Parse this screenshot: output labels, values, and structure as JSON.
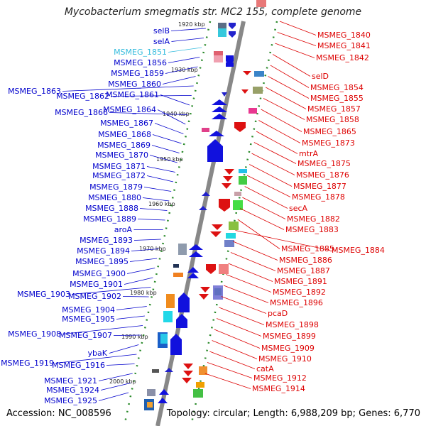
{
  "title": "Mycobacterium smegmatis str. MC2 155, complete genome",
  "footer": {
    "accession": "Accession: NC_008596",
    "topology": "Topology: circular; Length: 6,988,209 bp; Genes: 6,770"
  },
  "colors": {
    "left_label": "#0000cc",
    "left_label_highlight": "#33bbdd",
    "right_label": "#dd0000",
    "axis": "#888888",
    "tick": "#2a8a2a"
  },
  "kbp_marks": [
    "1920 kbp",
    "1930 kbp",
    "1940 kbp",
    "1950 kbp",
    "1960 kbp",
    "1970 kbp",
    "1980 kbp",
    "1990 kbp",
    "2000 kbp"
  ],
  "left_labels": [
    "selB",
    "selA",
    "MSMEG_1851",
    "MSMEG_1856",
    "MSMEG_1859",
    "MSMEG_1860",
    "MSMEG_1863",
    "MSMEG_1862",
    "MSMEG_1861",
    "MSMEG_1866",
    "MSMEG_1864",
    "MSMEG_1867",
    "MSMEG_1868",
    "MSMEG_1869",
    "MSMEG_1870",
    "MSMEG_1871",
    "MSMEG_1872",
    "MSMEG_1879",
    "MSMEG_1880",
    "MSMEG_1888",
    "MSMEG_1889",
    "aroA",
    "MSMEG_1893",
    "MSMEG_1894",
    "MSMEG_1895",
    "MSMEG_1900",
    "MSMEG_1901",
    "MSMEG_1903",
    "MSMEG_1902",
    "MSMEG_1904",
    "MSMEG_1905",
    "MSMEG_1908",
    "MSMEG_1907",
    "ybaK",
    "MSMEG_1919",
    "MSMEG_1916",
    "MSMEG_1921",
    "MSMEG_1924",
    "MSMEG_1925"
  ],
  "right_labels": [
    "MSMEG_1840",
    "MSMEG_1841",
    "MSMEG_1842",
    "selD",
    "MSMEG_1854",
    "MSMEG_1855",
    "MSMEG_1857",
    "MSMEG_1858",
    "MSMEG_1865",
    "MSMEG_1873",
    "mtrA",
    "MSMEG_1875",
    "MSMEG_1876",
    "MSMEG_1877",
    "MSMEG_1878",
    "secA",
    "MSMEG_1882",
    "MSMEG_1883",
    "MSMEG_1885",
    "MSMEG_1884",
    "MSMEG_1886",
    "MSMEG_1887",
    "MSMEG_1891",
    "MSMEG_1892",
    "MSMEG_1896",
    "pcaD",
    "MSMEG_1898",
    "MSMEG_1899",
    "MSMEG_1909",
    "MSMEG_1910",
    "catA",
    "MSMEG_1912",
    "MSMEG_1914"
  ]
}
